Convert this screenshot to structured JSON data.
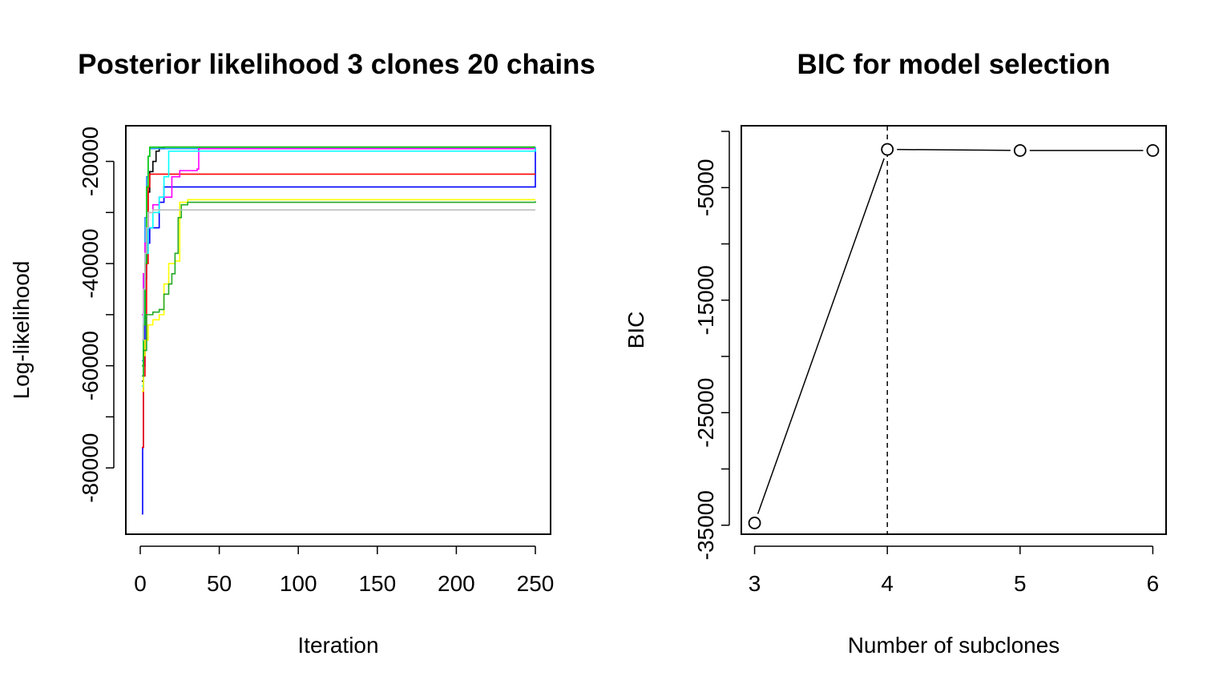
{
  "chart_data": [
    {
      "type": "line",
      "title": "Posterior likelihood 3 clones 20 chains",
      "xlabel": "Iteration",
      "ylabel": "Log-likelihood",
      "xlim": [
        0,
        250
      ],
      "ylim": [
        -90000,
        -16000
      ],
      "x_ticks": [
        0,
        50,
        100,
        150,
        200,
        250
      ],
      "y_ticks": [
        -80000,
        -60000,
        -40000,
        -20000
      ],
      "y_tick_labels": [
        "-80000",
        "-60000",
        "-40000",
        "-20000"
      ],
      "legend": "none",
      "grid": false,
      "series": [
        {
          "color": "#000000",
          "points": [
            [
              1,
              -63000
            ],
            [
              2,
              -52000
            ],
            [
              3,
              -40000
            ],
            [
              4,
              -33000
            ],
            [
              5,
              -26000
            ],
            [
              6,
              -22000
            ],
            [
              8,
              -20000
            ],
            [
              10,
              -18000
            ],
            [
              12,
              -17500
            ],
            [
              15,
              -17200
            ],
            [
              250,
              -17200
            ]
          ]
        },
        {
          "color": "#1e90ff",
          "points": [
            [
              1,
              -59000
            ],
            [
              2,
              -42000
            ],
            [
              3,
              -31000
            ],
            [
              4,
              -23000
            ],
            [
              5,
              -19000
            ],
            [
              6,
              -17500
            ],
            [
              250,
              -17400
            ]
          ]
        },
        {
          "color": "#0000ff",
          "points": [
            [
              1,
              -89000
            ],
            [
              1.5,
              -76000
            ],
            [
              2,
              -60000
            ],
            [
              3,
              -43000
            ],
            [
              4,
              -36000
            ],
            [
              6,
              -33000
            ],
            [
              10,
              -33000
            ],
            [
              12,
              -28000
            ],
            [
              15,
              -25000
            ],
            [
              250,
              -17300
            ]
          ]
        },
        {
          "color": "#ff0000",
          "points": [
            [
              1,
              -76000
            ],
            [
              2,
              -62000
            ],
            [
              3,
              -55000
            ],
            [
              4,
              -40000
            ],
            [
              5,
              -25000
            ],
            [
              6,
              -22500
            ],
            [
              250,
              -22500
            ]
          ]
        },
        {
          "color": "#ff00ff",
          "points": [
            [
              1,
              -50000
            ],
            [
              2,
              -42000
            ],
            [
              3,
              -36000
            ],
            [
              5,
              -30000
            ],
            [
              8,
              -28500
            ],
            [
              12,
              -27000
            ],
            [
              20,
              -23000
            ],
            [
              25,
              -21800
            ],
            [
              36,
              -21500
            ],
            [
              37,
              -17500
            ],
            [
              250,
              -17500
            ]
          ]
        },
        {
          "color": "#00ffff",
          "points": [
            [
              1,
              -64000
            ],
            [
              2,
              -50000
            ],
            [
              3,
              -38000
            ],
            [
              5,
              -33000
            ],
            [
              8,
              -30000
            ],
            [
              12,
              -27000
            ],
            [
              15,
              -23000
            ],
            [
              18,
              -18000
            ],
            [
              250,
              -17400
            ]
          ]
        },
        {
          "color": "#ffff00",
          "points": [
            [
              1,
              -65000
            ],
            [
              2,
              -58000
            ],
            [
              3,
              -55000
            ],
            [
              5,
              -52000
            ],
            [
              8,
              -51000
            ],
            [
              12,
              -50000
            ],
            [
              15,
              -44000
            ],
            [
              18,
              -40000
            ],
            [
              22,
              -39500
            ],
            [
              25,
              -28000
            ],
            [
              30,
              -27500
            ],
            [
              250,
              -27500
            ]
          ]
        },
        {
          "color": "#00cc00",
          "points": [
            [
              1,
              -60000
            ],
            [
              2,
              -52000
            ],
            [
              3,
              -40000
            ],
            [
              4,
              -25000
            ],
            [
              5,
              -19000
            ],
            [
              6,
              -17200
            ],
            [
              250,
              -17200
            ]
          ]
        },
        {
          "color": "#22aa22",
          "points": [
            [
              1,
              -62000
            ],
            [
              2,
              -57000
            ],
            [
              4,
              -50000
            ],
            [
              8,
              -49500
            ],
            [
              12,
              -49000
            ],
            [
              15,
              -46000
            ],
            [
              18,
              -44000
            ],
            [
              20,
              -42000
            ],
            [
              22,
              -38000
            ],
            [
              24,
              -31000
            ],
            [
              26,
              -28500
            ],
            [
              30,
              -28000
            ],
            [
              250,
              -27800
            ]
          ]
        },
        {
          "color": "#bebebe",
          "points": [
            [
              1,
              -55000
            ],
            [
              2,
              -45000
            ],
            [
              3,
              -38000
            ],
            [
              4,
              -33000
            ],
            [
              5,
              -30000
            ],
            [
              8,
              -29500
            ],
            [
              250,
              -29500
            ]
          ]
        }
      ]
    },
    {
      "type": "line",
      "title": "BIC for model selection",
      "xlabel": "Number of subclones",
      "ylabel": "BIC",
      "x": [
        3,
        4,
        5,
        6
      ],
      "y": [
        -34800,
        -1600,
        -1700,
        -1700
      ],
      "xlim": [
        2.9,
        6.1
      ],
      "ylim": [
        -35800,
        500
      ],
      "x_ticks": [
        3,
        4,
        5,
        6
      ],
      "x_tick_labels": [
        "3",
        "4",
        "5",
        "6"
      ],
      "y_ticks": [
        -35000,
        -25000,
        -15000,
        -5000
      ],
      "y_tick_labels": [
        "-35000",
        "-25000",
        "-15000",
        "-5000"
      ],
      "y_minor_ticks": [
        -30000,
        -20000,
        -10000
      ],
      "marker": "open-circle",
      "vline": {
        "x": 4,
        "style": "dashed"
      },
      "legend": "none",
      "grid": false
    }
  ]
}
